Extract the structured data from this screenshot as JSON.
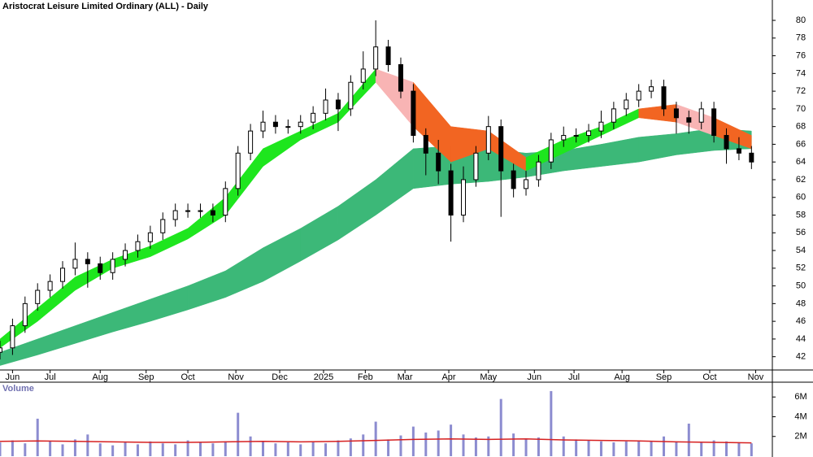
{
  "chart_data": [
    {
      "type": "candlestick",
      "title": "Aristocrat Leisure Limited Ordinary (ALL) - Daily",
      "xlim": [
        0,
        370
      ],
      "ylim": [
        40.5,
        82.3
      ],
      "xticks": [
        {
          "value": 6,
          "label": "Jun"
        },
        {
          "value": 24,
          "label": "Jul"
        },
        {
          "value": 48,
          "label": "Aug"
        },
        {
          "value": 70,
          "label": "Sep"
        },
        {
          "value": 90,
          "label": "Oct"
        },
        {
          "value": 113,
          "label": "Nov"
        },
        {
          "value": 134,
          "label": "Dec"
        },
        {
          "value": 155,
          "label": "2025"
        },
        {
          "value": 175,
          "label": "Feb"
        },
        {
          "value": 194,
          "label": "Mar"
        },
        {
          "value": 215,
          "label": "Apr"
        },
        {
          "value": 234,
          "label": "May"
        },
        {
          "value": 256,
          "label": "Jun"
        },
        {
          "value": 275,
          "label": "Jul"
        },
        {
          "value": 298,
          "label": "Aug"
        },
        {
          "value": 318,
          "label": "Sep"
        },
        {
          "value": 340,
          "label": "Oct"
        },
        {
          "value": 362,
          "label": "Nov"
        }
      ],
      "yticks": [
        42,
        44,
        46,
        48,
        50,
        52,
        54,
        56,
        58,
        60,
        62,
        64,
        66,
        68,
        70,
        72,
        74,
        76,
        78,
        80
      ],
      "x": [
        0,
        6,
        12,
        18,
        24,
        30,
        36,
        42,
        48,
        54,
        60,
        66,
        72,
        78,
        84,
        90,
        96,
        102,
        108,
        114,
        120,
        126,
        132,
        138,
        144,
        150,
        156,
        162,
        168,
        174,
        180,
        186,
        192,
        198,
        204,
        210,
        216,
        222,
        228,
        234,
        240,
        246,
        252,
        258,
        264,
        270,
        276,
        282,
        288,
        294,
        300,
        306,
        312,
        318,
        324,
        330,
        336,
        342,
        348,
        354,
        360
      ],
      "open": [
        42.5,
        43,
        45.5,
        48,
        49.5,
        50.5,
        52,
        53,
        52.5,
        51.5,
        53,
        54,
        55,
        56,
        57.5,
        58.5,
        58.5,
        58.5,
        58,
        61,
        65,
        67.5,
        68.5,
        68,
        68,
        68.5,
        69.5,
        71,
        70,
        73,
        74.5,
        77,
        75,
        72,
        67,
        65,
        63,
        58,
        62,
        65,
        68,
        63,
        61,
        62,
        64,
        66.5,
        67,
        67,
        67.5,
        68.5,
        70,
        71,
        72,
        72.5,
        70,
        69,
        68.5,
        70,
        67,
        65.5,
        65
      ],
      "high": [
        43.8,
        46.3,
        48.8,
        50.3,
        51.3,
        52.8,
        54.9,
        53.8,
        53.3,
        53.8,
        54.8,
        55.8,
        56.8,
        58.3,
        59.3,
        59.3,
        59.3,
        59.3,
        61.8,
        65.8,
        68.3,
        69.8,
        69.3,
        68.8,
        69.3,
        70.3,
        72.3,
        71.8,
        73.8,
        76.5,
        80,
        77.8,
        75.8,
        72.8,
        67.8,
        66.5,
        63.8,
        63.5,
        65.8,
        69.2,
        68.8,
        63.8,
        63,
        64.8,
        67.3,
        68,
        67.8,
        68.3,
        69.8,
        70.8,
        71.8,
        72.8,
        73.3,
        73.3,
        70.8,
        69.8,
        70.8,
        70.8,
        67.8,
        66.8,
        65.8
      ],
      "low": [
        41.7,
        42.2,
        44.7,
        47.2,
        48.7,
        49.7,
        51.2,
        49.8,
        50.7,
        50.7,
        52.2,
        53.2,
        54.2,
        55.2,
        56.7,
        57.7,
        57.7,
        57.2,
        57.2,
        60.2,
        64.2,
        66.7,
        67.2,
        67.2,
        67.2,
        67.7,
        68.7,
        67.5,
        69.2,
        72.2,
        73.7,
        74.2,
        71.2,
        66.2,
        62.5,
        61.5,
        55,
        57.2,
        61.2,
        64.2,
        57.8,
        60,
        60.2,
        61.2,
        63.2,
        65.7,
        66.2,
        66.2,
        66.7,
        67.7,
        69.2,
        70.2,
        71.2,
        69.2,
        67.2,
        67.2,
        67.7,
        66.2,
        63.8,
        64.2,
        63.2
      ],
      "close": [
        43,
        45.5,
        48,
        49.5,
        50.5,
        52,
        53,
        52.5,
        51.5,
        53,
        54,
        55,
        56,
        57.5,
        58.5,
        58.5,
        58.5,
        58,
        61,
        65,
        67.5,
        68.5,
        68,
        68,
        68.5,
        69.5,
        71,
        70,
        73,
        74.5,
        77,
        75,
        72,
        67,
        65,
        63,
        58,
        62,
        65,
        68,
        63,
        61,
        62,
        64,
        66.5,
        67,
        67,
        67.5,
        68.5,
        70,
        71,
        72,
        72.5,
        70,
        69,
        68.5,
        70,
        67,
        65.5,
        65,
        64
      ],
      "bands": [
        {
          "x": [
            0,
            18,
            36,
            54,
            72,
            90,
            108,
            126,
            144,
            162,
            180,
            198,
            216,
            234,
            252,
            270,
            288,
            306,
            324,
            342,
            360
          ],
          "upper": [
            42.5,
            44.0,
            45.5,
            47.0,
            48.5,
            50.0,
            51.7,
            54.3,
            56.5,
            59.0,
            62.0,
            65.5,
            65.8,
            65.5,
            65.0,
            65.3,
            66.0,
            66.8,
            67.2,
            67.8,
            67.5
          ],
          "lower": [
            41.0,
            42.2,
            43.5,
            44.8,
            46.0,
            47.3,
            48.7,
            50.5,
            52.8,
            55.2,
            58.0,
            61.0,
            61.5,
            61.8,
            62.3,
            63.0,
            63.5,
            64.0,
            64.8,
            65.3,
            65.5
          ],
          "segment_colors": [
            "#3cb878",
            "#3cb878",
            "#3cb878",
            "#3cb878",
            "#3cb878",
            "#3cb878",
            "#3cb878",
            "#3cb878",
            "#3cb878",
            "#3cb878",
            "#3cb878",
            "#3cb878",
            "#3cb878",
            "#3cb878",
            "#3cb878",
            "#3cb878",
            "#3cb878",
            "#3cb878",
            "#3cb878",
            "#3cb878"
          ]
        },
        {
          "x": [
            0,
            18,
            36,
            54,
            72,
            90,
            108,
            126,
            144,
            162,
            180,
            198,
            216,
            234,
            252,
            270,
            288,
            306,
            324,
            342,
            360
          ],
          "upper": [
            44.0,
            47.5,
            51.0,
            53.0,
            54.5,
            56.5,
            60.0,
            65.5,
            67.5,
            69.5,
            74.5,
            73.0,
            68.0,
            67.5,
            64.5,
            66.5,
            68.0,
            70.0,
            70.5,
            69.0,
            67.0
          ],
          "lower": [
            43.0,
            46.0,
            49.5,
            52.0,
            53.3,
            55.3,
            58.0,
            63.5,
            66.5,
            68.5,
            73.0,
            68.0,
            64.0,
            65.5,
            63.0,
            65.0,
            67.0,
            69.0,
            68.5,
            67.0,
            65.5
          ],
          "segment_colors": [
            "#1ee61e",
            "#1ee61e",
            "#1ee61e",
            "#1ee61e",
            "#1ee61e",
            "#1ee61e",
            "#1ee61e",
            "#1ee61e",
            "#1ee61e",
            "#1ee61e",
            "#f8b4b4",
            "#f26522",
            "#f26522",
            "#f26522",
            "#1ee61e",
            "#1ee61e",
            "#1ee61e",
            "#f26522",
            "#f8b4b4",
            "#f26522"
          ]
        }
      ]
    },
    {
      "type": "bar",
      "title": "Volume",
      "color": "#8c8cd0",
      "xlim": [
        0,
        370
      ],
      "ylim": [
        0,
        7500000
      ],
      "yticks": [
        {
          "value": 2000000,
          "label": "2M"
        },
        {
          "value": 4000000,
          "label": "4M"
        },
        {
          "value": 6000000,
          "label": "6M"
        }
      ],
      "x": [
        0,
        6,
        12,
        18,
        24,
        30,
        36,
        42,
        48,
        54,
        60,
        66,
        72,
        78,
        84,
        90,
        96,
        102,
        108,
        114,
        120,
        126,
        132,
        138,
        144,
        150,
        156,
        162,
        168,
        174,
        180,
        186,
        192,
        198,
        204,
        210,
        216,
        222,
        228,
        234,
        240,
        246,
        252,
        258,
        264,
        270,
        276,
        282,
        288,
        294,
        300,
        306,
        312,
        318,
        324,
        330,
        336,
        342,
        348,
        354,
        360
      ],
      "values": [
        1400000,
        1600000,
        1300000,
        3800000,
        1500000,
        1200000,
        1700000,
        2200000,
        1300000,
        1100000,
        1400000,
        1200000,
        1500000,
        1300000,
        1200000,
        1600000,
        1400000,
        1300000,
        1500000,
        4400000,
        2000000,
        1500000,
        1300000,
        1400000,
        1200000,
        1500000,
        1300000,
        1600000,
        1800000,
        2200000,
        3500000,
        1700000,
        2100000,
        3000000,
        2400000,
        2600000,
        3200000,
        2200000,
        1900000,
        2000000,
        5800000,
        2300000,
        1800000,
        1900000,
        6600000,
        2000000,
        1700000,
        1600000,
        1500000,
        1400000,
        1500000,
        1600000,
        1500000,
        2000000,
        1500000,
        3300000,
        1400000,
        1600000,
        1500000,
        1400000,
        1300000
      ],
      "moving_average": {
        "color": "#d62020",
        "x": [
          0,
          18,
          36,
          54,
          72,
          90,
          108,
          126,
          144,
          162,
          180,
          198,
          216,
          234,
          252,
          270,
          288,
          306,
          324,
          342,
          360
        ],
        "values": [
          1500000,
          1550000,
          1500000,
          1450000,
          1400000,
          1400000,
          1450000,
          1500000,
          1450000,
          1500000,
          1600000,
          1700000,
          1750000,
          1700000,
          1750000,
          1650000,
          1600000,
          1550000,
          1450000,
          1400000,
          1350000
        ]
      }
    }
  ]
}
